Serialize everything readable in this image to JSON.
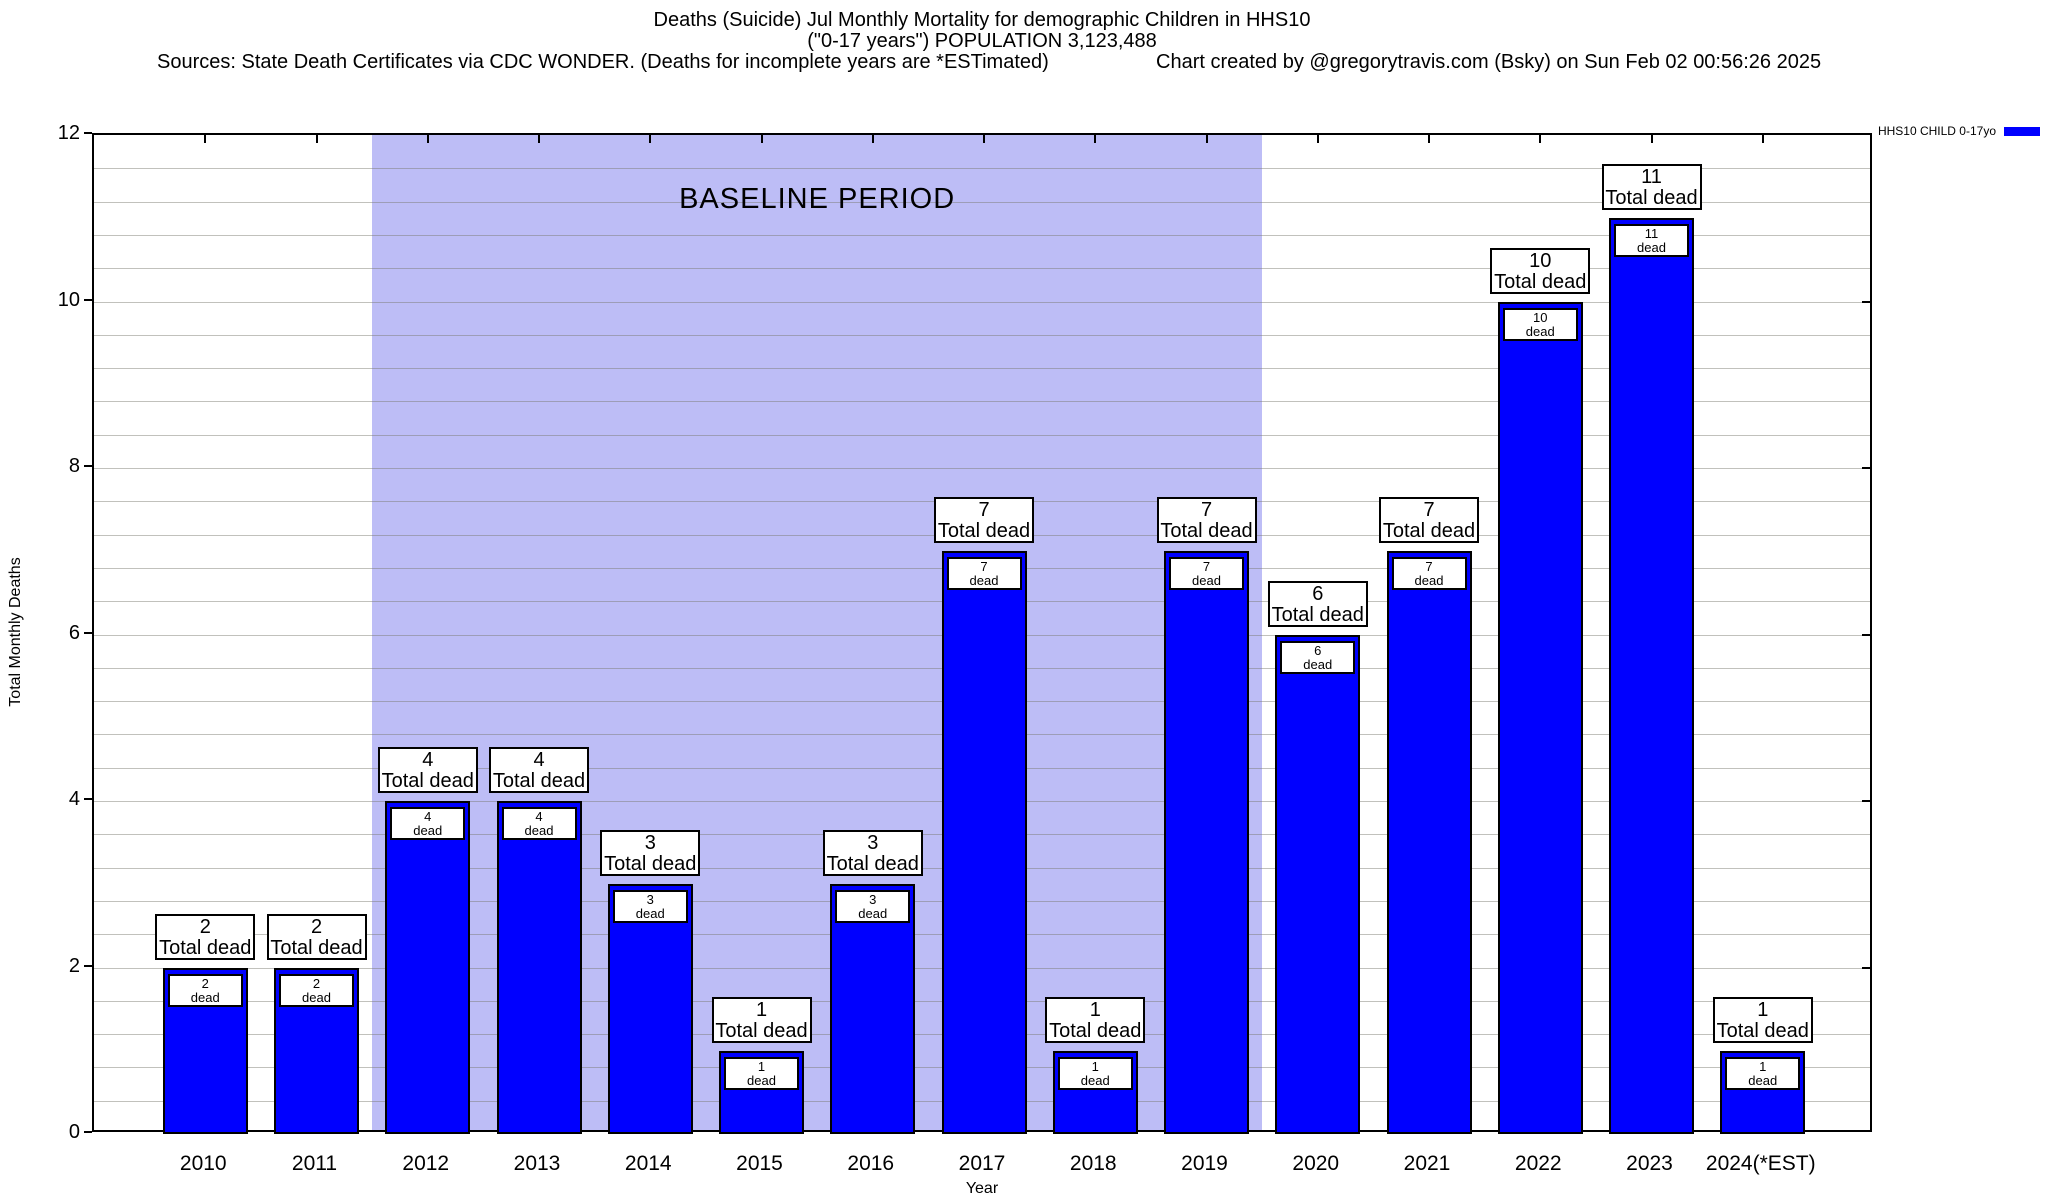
{
  "header": {
    "title_line1": "Deaths (Suicide) Jul Monthly Mortality for demographic Children in HHS10",
    "title_line2": "(\"0-17 years\") POPULATION 3,123,488",
    "sources": "Sources: State Death Certificates via CDC WONDER. (Deaths for incomplete years are *ESTimated)",
    "credit": "Chart created by @gregorytravis.com (Bsky) on Sun Feb 02 00:56:26 2025"
  },
  "legend": {
    "label": "HHS10 CHILD 0-17yo",
    "swatch_color": "#0000ff"
  },
  "chart_data": {
    "type": "bar",
    "title": "Deaths (Suicide) Jul Monthly Mortality for demographic Children in HHS10 (\"0-17 years\") POPULATION 3,123,488",
    "series_name": "HHS10 CHILD 0-17yo",
    "categories": [
      "2010",
      "2011",
      "2012",
      "2013",
      "2014",
      "2015",
      "2016",
      "2017",
      "2018",
      "2019",
      "2020",
      "2021",
      "2022",
      "2023",
      "2024(*EST)"
    ],
    "values": [
      2,
      2,
      4,
      4,
      3,
      1,
      3,
      7,
      1,
      7,
      6,
      7,
      10,
      11,
      1
    ],
    "xlabel": "Year",
    "ylabel": "Total Monthly Deaths",
    "ylim": [
      0,
      12
    ],
    "yticks": [
      0,
      2,
      4,
      6,
      8,
      10,
      12
    ],
    "minor_grid_step": 0.4,
    "grid": true,
    "legend_position": "top-right-outside",
    "bar_color": "#0000ff",
    "bar_border_color": "#000000",
    "bar_label_top_suffix": "Total dead",
    "bar_label_inner_suffix": "dead (100%)",
    "annotation": {
      "text": "BASELINE PERIOD",
      "start_category": "2012",
      "end_category": "2019",
      "region_color": "#bdbdf6"
    }
  }
}
